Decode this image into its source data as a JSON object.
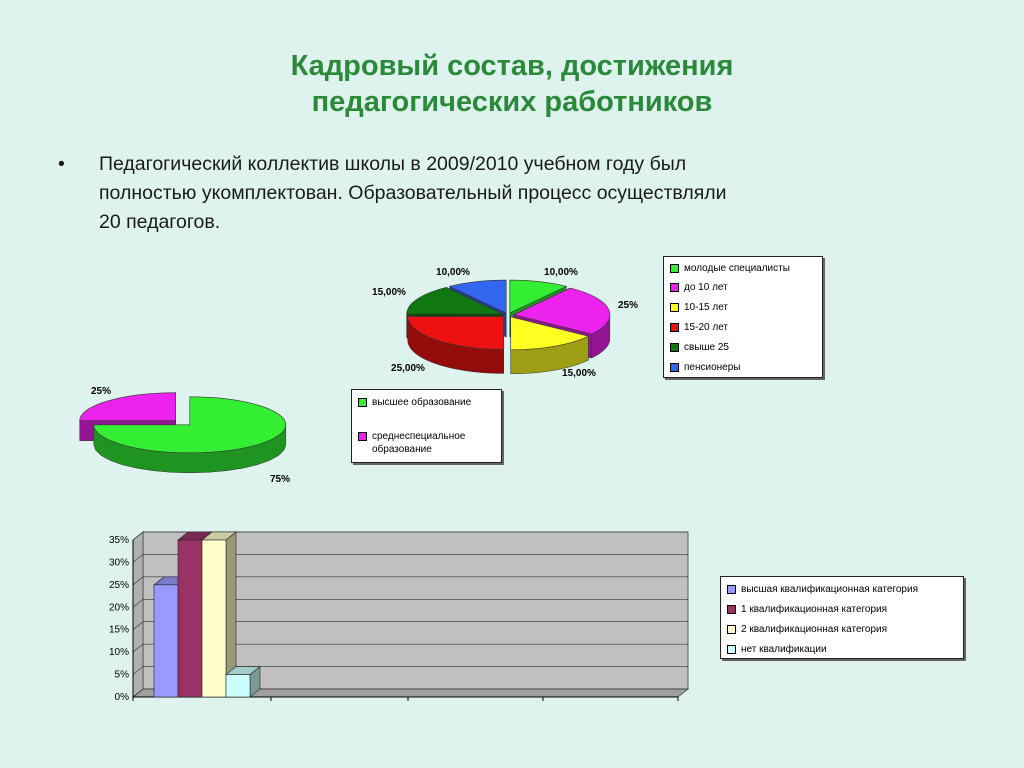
{
  "title": {
    "line1": "Кадровый состав, достижения",
    "line2": "педагогических работников"
  },
  "bullet": {
    "marker": "•",
    "line1": "Педагогический коллектив школы в 2009/2010 учебном году  был",
    "line2": "полностью укомплектован. Образовательный процесс осуществляли",
    "line3": "20 педагогов."
  },
  "chart_data": [
    {
      "type": "pie",
      "style": "3d-exploded",
      "slices": [
        {
          "label": "молодые специалисты",
          "value": 10,
          "data_label": "10,00%",
          "color": "#33ee33"
        },
        {
          "label": "до 10 лет",
          "value": 25,
          "data_label": "25%",
          "color": "#ee22ee"
        },
        {
          "label": "10-15 лет",
          "value": 15,
          "data_label": "15,00%",
          "color": "#ffff22"
        },
        {
          "label": "15-20 лет",
          "value": 25,
          "data_label": "25,00%",
          "color": "#ee1111"
        },
        {
          "label": "свыше 25",
          "value": 15,
          "data_label": "15,00%",
          "color": "#117711"
        },
        {
          "label": "пенсионеры",
          "value": 10,
          "data_label": "10,00%",
          "color": "#3366ee"
        }
      ],
      "legend": {
        "placement": "right",
        "entries": [
          "молодые специалисты",
          "до 10 лет",
          "10-15 лет",
          "15-20 лет",
          "свыше 25",
          "пенсионеры"
        ]
      }
    },
    {
      "type": "pie",
      "style": "3d-exploded",
      "slices": [
        {
          "label": "высшее образование",
          "value": 75,
          "data_label": "75%",
          "color": "#33ee33"
        },
        {
          "label": "среднеспециальное образование",
          "value": 25,
          "data_label": "25%",
          "color": "#ee22ee"
        }
      ],
      "legend": {
        "placement": "right",
        "entries": [
          "высшее образование",
          "среднеспециальное образование"
        ]
      }
    },
    {
      "type": "bar",
      "style": "3d",
      "categories": [
        "высшая квалификационная категория",
        "1  квалификационная категория",
        "2  квалификационная категория",
        "нет квалификации"
      ],
      "series": [
        {
          "name": "высшая квалификационная категория",
          "value": 25,
          "color": "#9999ff"
        },
        {
          "name": "1  квалификационная категория",
          "value": 35,
          "color": "#993366"
        },
        {
          "name": "2  квалификационная категория",
          "value": 35,
          "color": "#ffffcc"
        },
        {
          "name": "нет квалификации",
          "value": 5,
          "color": "#ccffff"
        }
      ],
      "ylim": [
        0,
        35
      ],
      "yticks": [
        "0%",
        "5%",
        "10%",
        "15%",
        "20%",
        "25%",
        "30%",
        "35%"
      ],
      "grid": true,
      "legend": {
        "placement": "right"
      }
    }
  ]
}
